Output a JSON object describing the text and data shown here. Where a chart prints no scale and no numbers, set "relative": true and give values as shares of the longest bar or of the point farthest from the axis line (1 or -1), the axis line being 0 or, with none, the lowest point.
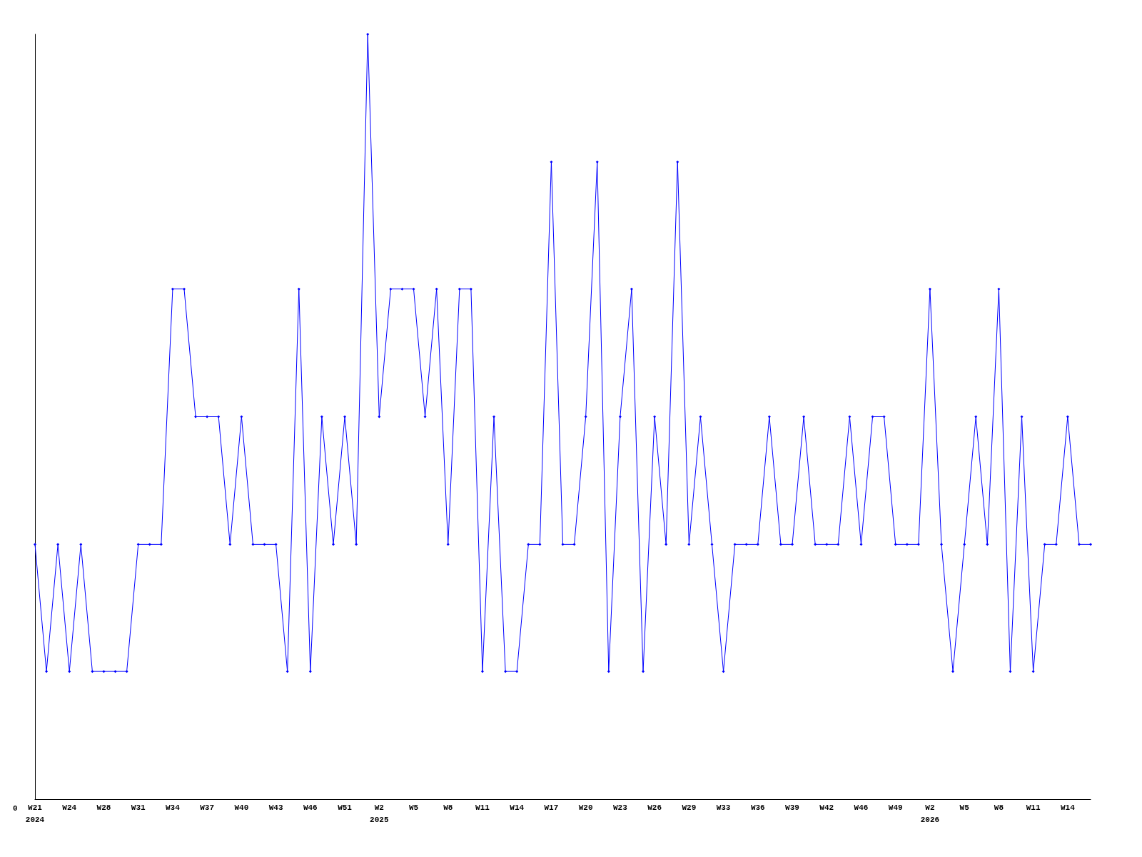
{
  "chart_data": {
    "type": "line",
    "relative": true,
    "marker": "diamond",
    "line_style": "solid",
    "grid": false,
    "annotations": [
      "0",
      "2024",
      "2025",
      "2026"
    ],
    "categories": [
      "W21",
      null,
      null,
      "W24",
      null,
      null,
      "W28",
      null,
      null,
      "W31",
      null,
      null,
      "W34",
      null,
      null,
      "W37",
      null,
      null,
      "W40",
      null,
      null,
      "W43",
      null,
      null,
      "W46",
      null,
      null,
      "W51",
      null,
      null,
      "W2",
      null,
      null,
      "W5",
      null,
      null,
      "W8",
      null,
      null,
      "W11",
      null,
      null,
      "W14",
      null,
      null,
      "W17",
      null,
      null,
      "W20",
      null,
      null,
      "W23",
      null,
      null,
      "W26",
      null,
      null,
      "W29",
      null,
      null,
      "W33",
      null,
      null,
      "W36",
      null,
      null,
      "W39",
      null,
      null,
      "W42",
      null,
      null,
      "W46",
      null,
      null,
      "W49",
      null,
      null,
      "W2",
      null,
      null,
      "W5",
      null,
      null,
      "W8",
      null,
      null,
      "W11",
      null,
      null,
      "W14",
      null,
      null
    ],
    "series": [
      {
        "color": "#0000ff",
        "values": [
          0.333,
          0.167,
          0.333,
          0.167,
          0.333,
          0.167,
          0.167,
          0.167,
          0.167,
          0.333,
          0.333,
          0.333,
          0.667,
          0.667,
          0.5,
          0.5,
          0.5,
          0.333,
          0.5,
          0.333,
          0.333,
          0.333,
          0.167,
          0.667,
          0.167,
          0.5,
          0.333,
          0.5,
          0.333,
          1,
          0.5,
          0.667,
          0.667,
          0.667,
          0.5,
          0.667,
          0.333,
          0.667,
          0.667,
          0.167,
          0.5,
          0.167,
          0.167,
          0.333,
          0.333,
          0.833,
          0.333,
          0.333,
          0.5,
          0.833,
          0.167,
          0.5,
          0.667,
          0.167,
          0.5,
          0.333,
          0.833,
          0.333,
          0.5,
          0.333,
          0.167,
          0.333,
          0.333,
          0.333,
          0.5,
          0.333,
          0.333,
          0.5,
          0.333,
          0.333,
          0.333,
          0.5,
          0.333,
          0.5,
          0.5,
          0.333,
          0.333,
          0.333,
          0.667,
          0.333,
          0.167,
          0.333,
          0.5,
          0.333,
          0.667,
          0.167,
          0.5,
          0.167,
          0.333,
          0.333,
          0.5,
          0.333,
          0.333
        ]
      }
    ]
  }
}
